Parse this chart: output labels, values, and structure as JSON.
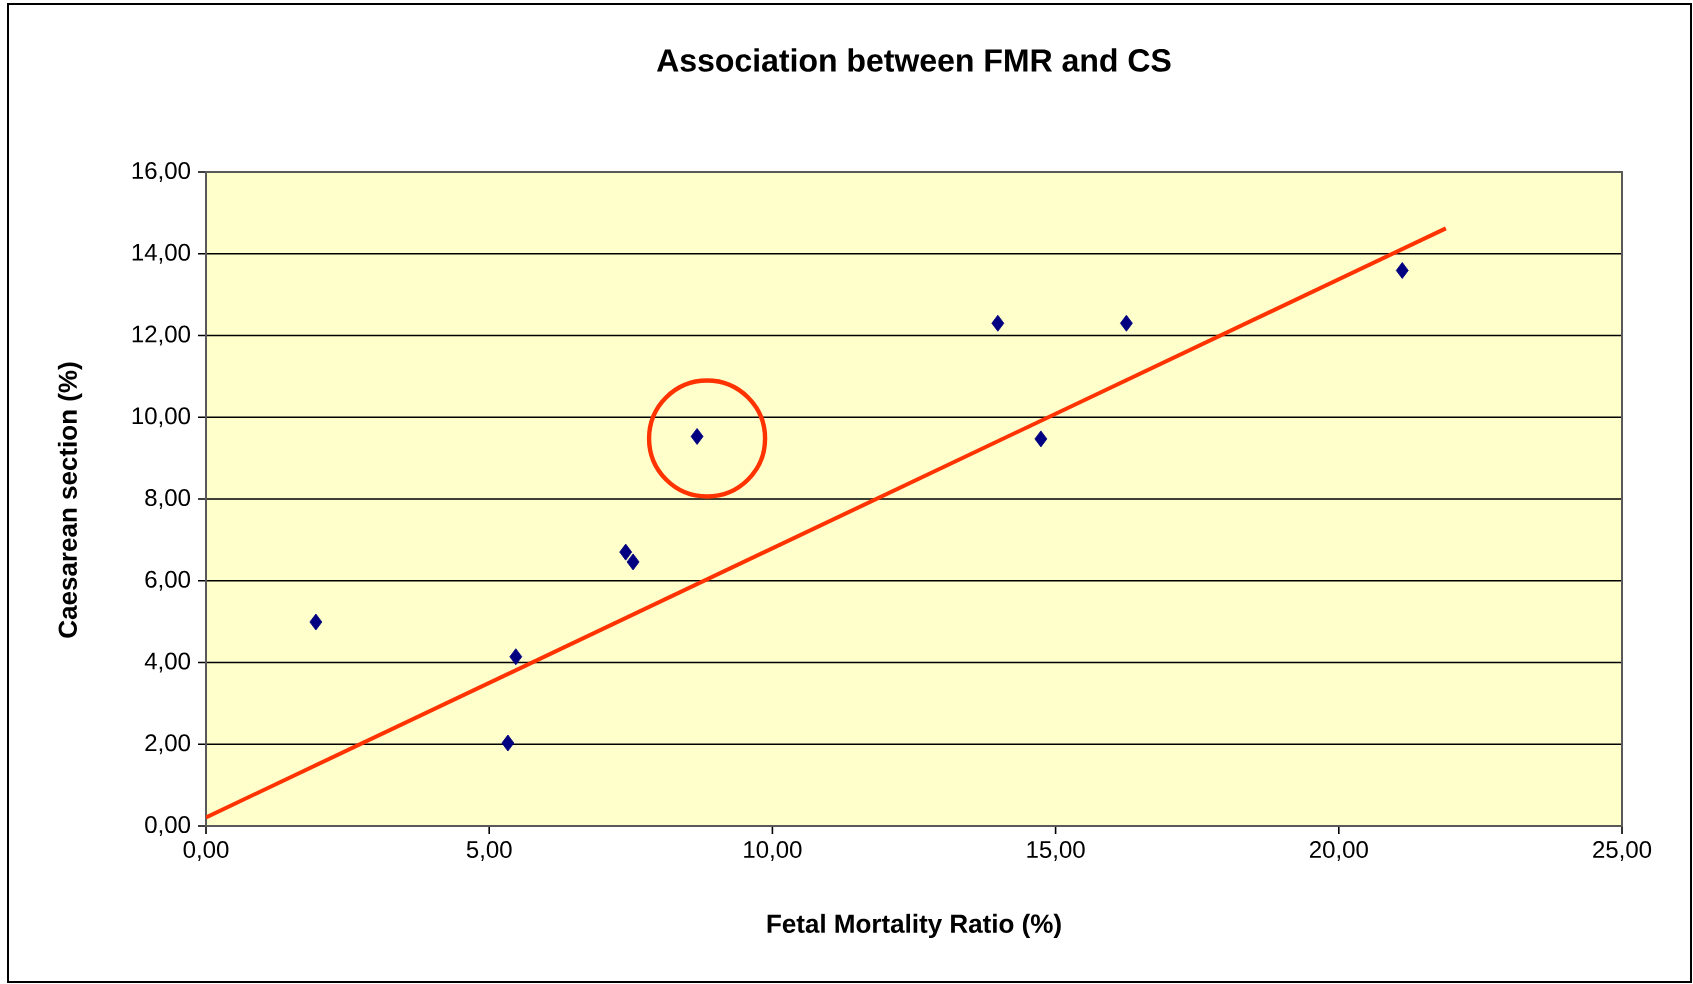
{
  "chart_data": {
    "type": "scatter",
    "title": "Association between FMR and CS",
    "xlabel": "Fetal Mortality Ratio (%)",
    "ylabel": "Caesarean section (%)",
    "series": [
      {
        "color": "#000080",
        "marker": "diamond",
        "x": [
          1.94,
          5.33,
          5.47,
          7.41,
          7.54,
          8.67,
          13.98,
          14.74,
          16.25,
          21.12
        ],
        "values": [
          4.99,
          2.03,
          4.14,
          6.7,
          6.46,
          9.53,
          12.3,
          9.47,
          12.3,
          13.59
        ]
      },
      {
        "type": "line",
        "color": "#ff3300",
        "marker": "none",
        "x": [
          0,
          21.89
        ],
        "values": [
          0.21,
          14.62
        ]
      }
    ],
    "xlim": [
      0,
      25
    ],
    "ylim": [
      0,
      16
    ],
    "xticks": [
      {
        "value": 0,
        "label": "0,00"
      },
      {
        "value": 5,
        "label": "5,00"
      },
      {
        "value": 10,
        "label": "10,00"
      },
      {
        "value": 15,
        "label": "15,00"
      },
      {
        "value": 20,
        "label": "20,00"
      },
      {
        "value": 25,
        "label": "25,00"
      }
    ],
    "yticks": [
      {
        "value": 0,
        "label": "0,00"
      },
      {
        "value": 2,
        "label": "2,00"
      },
      {
        "value": 4,
        "label": "4,00"
      },
      {
        "value": 6,
        "label": "6,00"
      },
      {
        "value": 8,
        "label": "8,00"
      },
      {
        "value": 10,
        "label": "10,00"
      },
      {
        "value": 12,
        "label": "12,00"
      },
      {
        "value": 14,
        "label": "14,00"
      },
      {
        "value": 16,
        "label": "16,00"
      }
    ],
    "grid": "y"
  }
}
